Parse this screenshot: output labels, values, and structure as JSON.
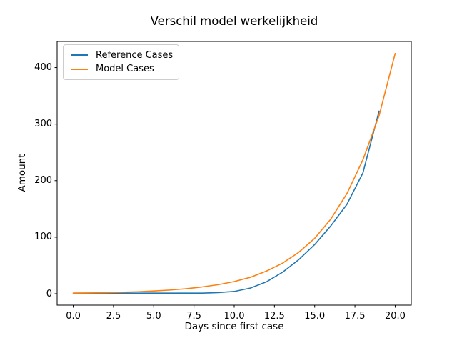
{
  "chart_data": {
    "type": "line",
    "title": "Verschil model werkelijkheid",
    "xlabel": "Days since first case",
    "ylabel": "Amount",
    "xlim": [
      -1,
      21
    ],
    "ylim": [
      -20.2,
      446.2
    ],
    "grid": false,
    "legend_position": "upper left",
    "background_color": "#ffffff",
    "axis_color": "#000000",
    "xticks": [
      {
        "label": "0.0",
        "value": 0
      },
      {
        "label": "2.5",
        "value": 2.5
      },
      {
        "label": "5.0",
        "value": 5
      },
      {
        "label": "7.5",
        "value": 7.5
      },
      {
        "label": "10.0",
        "value": 10
      },
      {
        "label": "12.5",
        "value": 12.5
      },
      {
        "label": "15.0",
        "value": 15
      },
      {
        "label": "17.5",
        "value": 17.5
      },
      {
        "label": "20.0",
        "value": 20
      }
    ],
    "yticks": [
      {
        "label": "0",
        "value": 0
      },
      {
        "label": "100",
        "value": 100
      },
      {
        "label": "200",
        "value": 200
      },
      {
        "label": "300",
        "value": 300
      },
      {
        "label": "400",
        "value": 400
      }
    ],
    "series": [
      {
        "name": "Reference Cases",
        "color": "#1f77b4",
        "x": [
          0,
          1,
          2,
          3,
          4,
          5,
          6,
          7,
          8,
          9,
          10,
          11,
          12,
          13,
          14,
          15,
          16,
          17,
          18,
          19
        ],
        "values": [
          1,
          1,
          1,
          1,
          1,
          1,
          1,
          1,
          1,
          2,
          4,
          10,
          21,
          38,
          60,
          87,
          120,
          158,
          214,
          323
        ]
      },
      {
        "name": "Model Cases",
        "color": "#ff7f0e",
        "x": [
          0,
          1,
          2,
          3,
          4,
          5,
          6,
          7,
          8,
          9,
          10,
          11,
          12,
          13,
          14,
          15,
          16,
          17,
          18,
          19,
          20
        ],
        "values": [
          1,
          1.4,
          1.9,
          2.6,
          3.5,
          4.8,
          6.5,
          8.8,
          12,
          16,
          21.5,
          29,
          40,
          54,
          73,
          98,
          132,
          177,
          237,
          315,
          425
        ]
      }
    ]
  }
}
